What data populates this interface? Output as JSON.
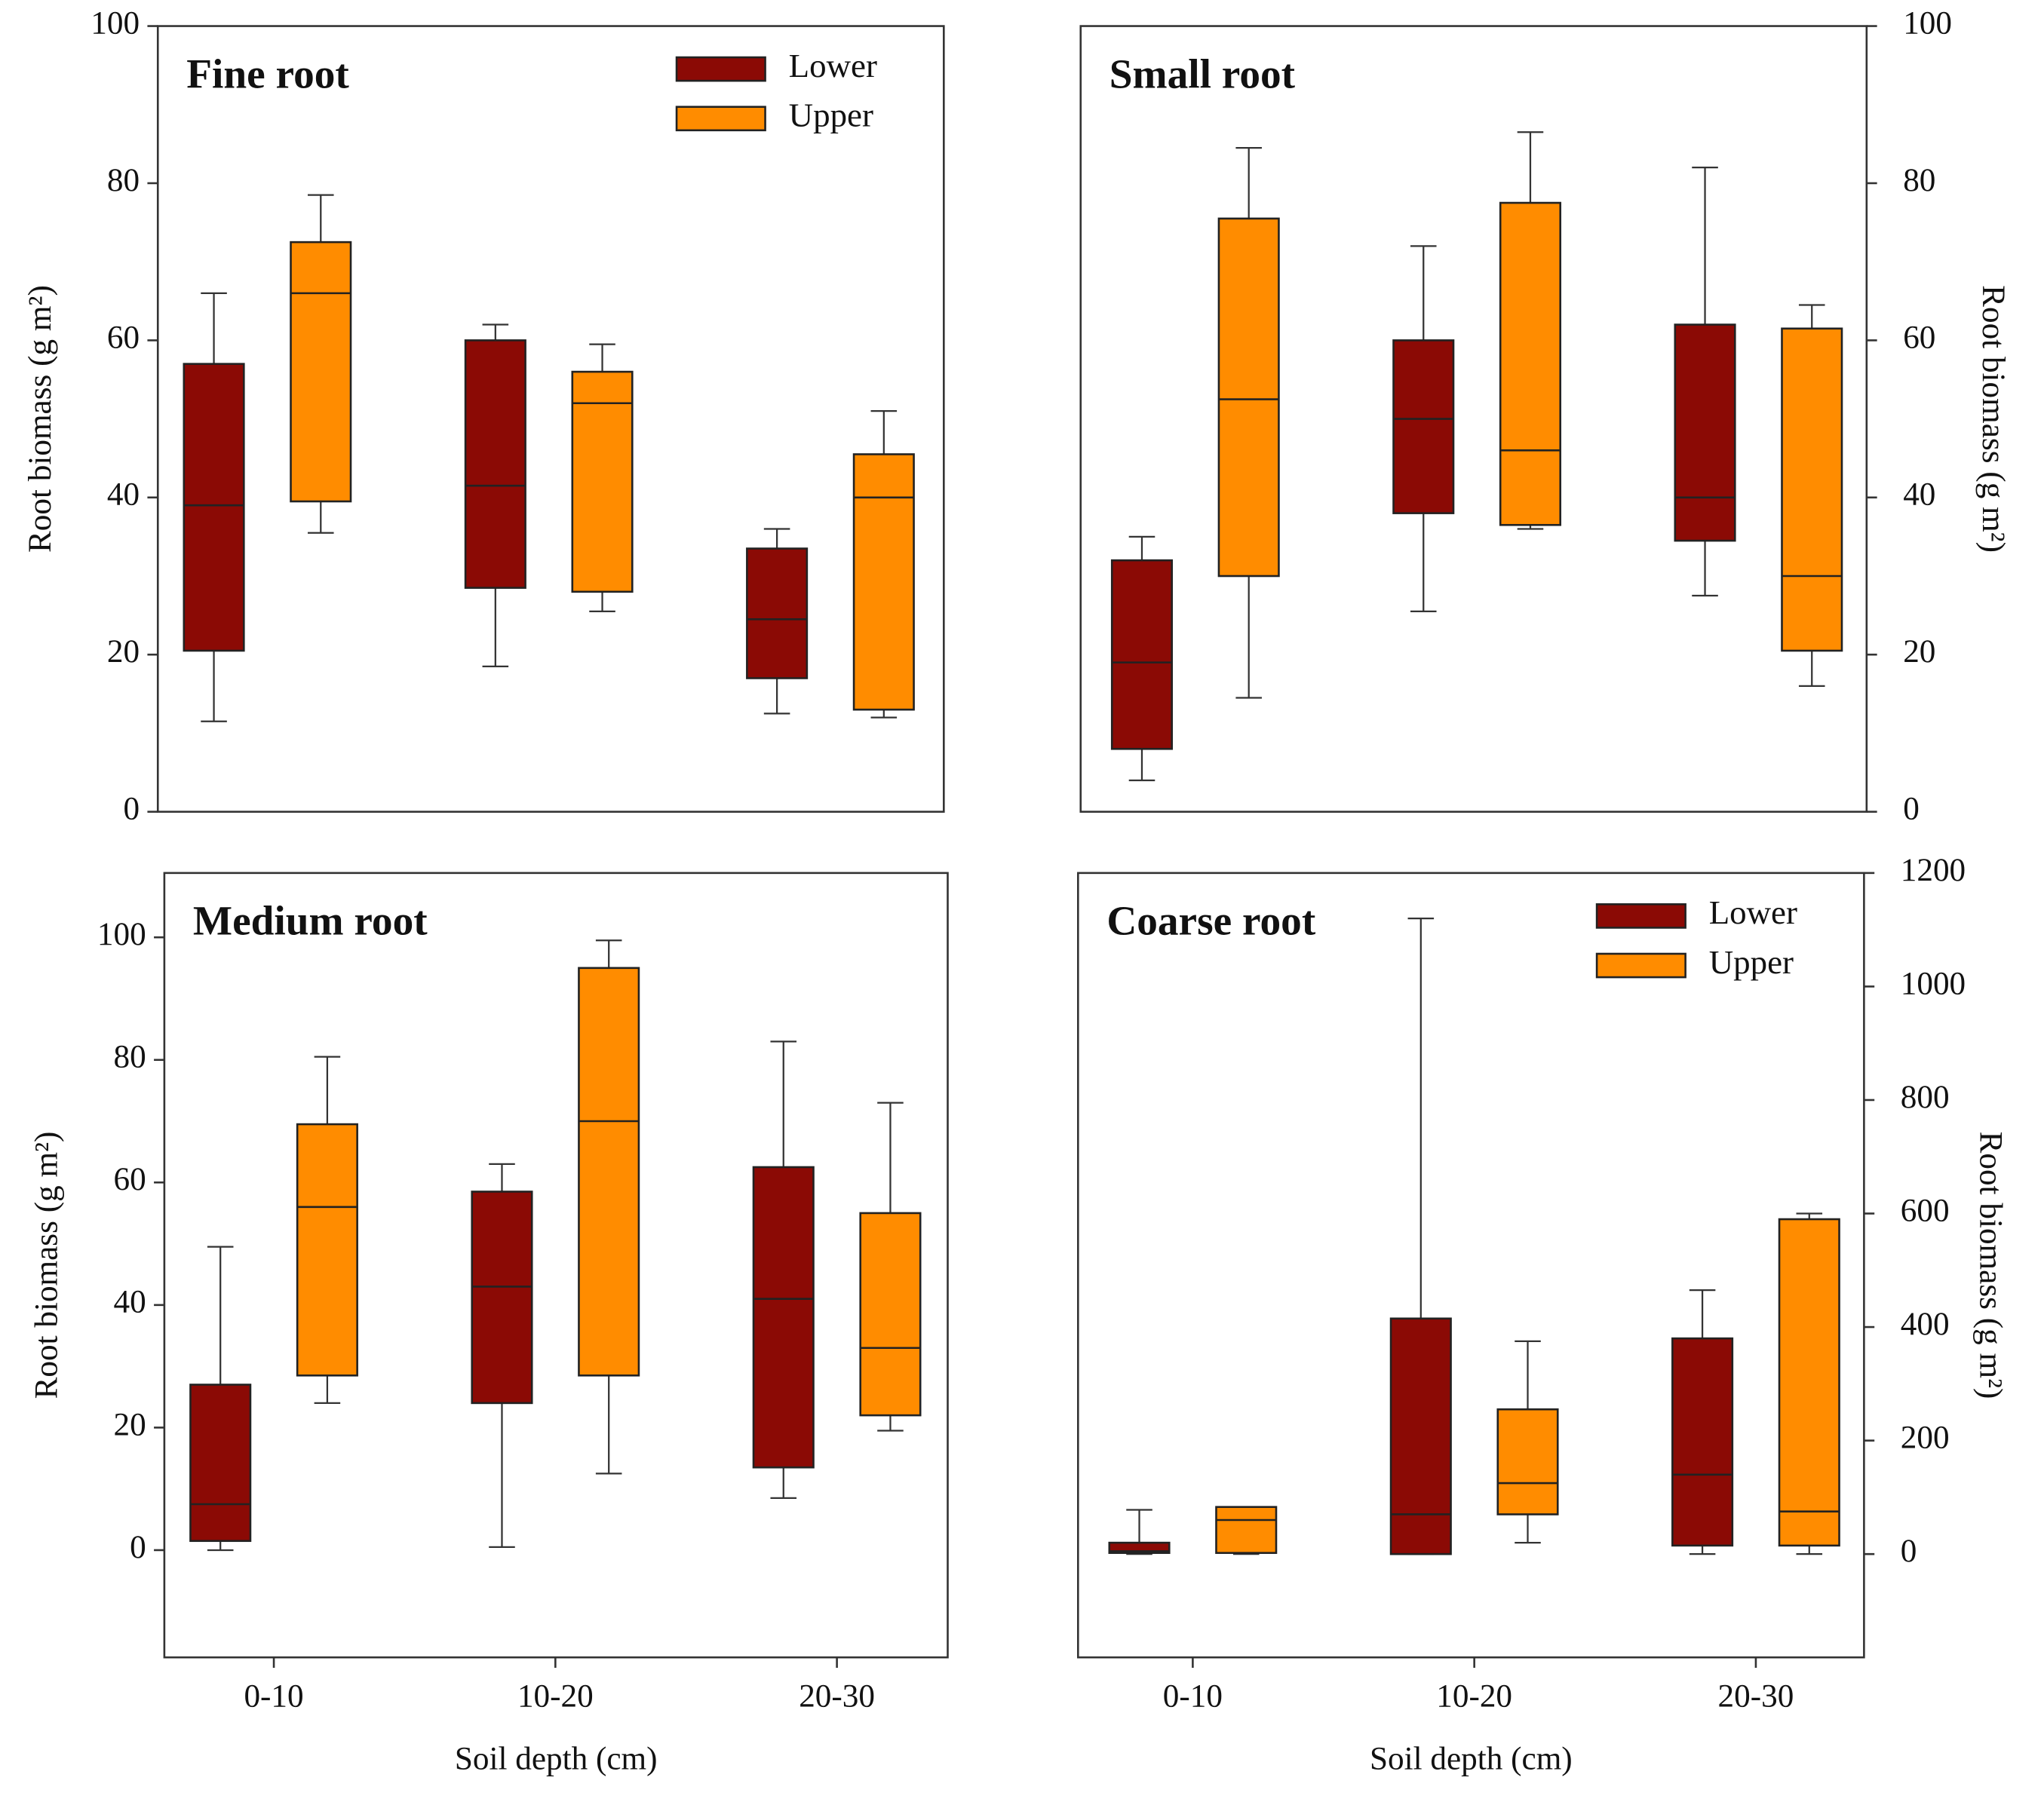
{
  "chart_data": [
    {
      "type": "box",
      "title": "Fine root",
      "y_label": "Root biomass (g m²)",
      "y_axis_side": "left",
      "categories": [
        null,
        null,
        null
      ],
      "ylim": [
        0,
        100
      ],
      "yticks": [
        0,
        20,
        40,
        60,
        80,
        100
      ],
      "legend": "top-right",
      "series": [
        {
          "name": "Lower",
          "color": "#8b0a05",
          "min": [
            11.5,
            18.5,
            12.5
          ],
          "q1": [
            20.5,
            28.5,
            17
          ],
          "median": [
            39,
            41.5,
            24.5
          ],
          "q3": [
            57,
            60,
            33.5
          ],
          "max": [
            66,
            62,
            36
          ]
        },
        {
          "name": "Upper",
          "color": "#ff8c00",
          "min": [
            35.5,
            25.5,
            12
          ],
          "q1": [
            39.5,
            28,
            13
          ],
          "median": [
            66,
            52,
            40
          ],
          "q3": [
            72.5,
            56,
            45.5
          ],
          "max": [
            78.5,
            59.5,
            51
          ]
        }
      ]
    },
    {
      "type": "box",
      "title": "Small root",
      "y_label": "Root biomass (g m²)",
      "y_axis_side": "right",
      "categories": [
        null,
        null,
        null
      ],
      "ylim": [
        0,
        100
      ],
      "yticks": [
        0,
        20,
        40,
        60,
        80,
        100
      ],
      "series": [
        {
          "color": "#8b0a05",
          "min": [
            4,
            25.5,
            27.5
          ],
          "q1": [
            8,
            38,
            34.5
          ],
          "median": [
            19,
            50,
            40
          ],
          "q3": [
            32,
            60,
            62
          ],
          "max": [
            35,
            72,
            82
          ]
        },
        {
          "color": "#ff8c00",
          "min": [
            14.5,
            36,
            16
          ],
          "q1": [
            30,
            36.5,
            20.5
          ],
          "median": [
            52.5,
            46,
            30
          ],
          "q3": [
            75.5,
            77.5,
            61.5
          ],
          "max": [
            84.5,
            86.5,
            64.5
          ]
        }
      ]
    },
    {
      "type": "box",
      "title": "Medium root",
      "y_label": "Root biomass (g m²)",
      "y_axis_side": "left",
      "x_label": "Soil depth (cm)",
      "categories": [
        "0-10",
        "10-20",
        "20-30"
      ],
      "ylim": [
        -17.5,
        110.5
      ],
      "yticks": [
        0,
        20,
        40,
        60,
        80,
        100
      ],
      "series": [
        {
          "color": "#8b0a05",
          "min": [
            0,
            0.5,
            8.5
          ],
          "q1": [
            1.5,
            24,
            13.5
          ],
          "median": [
            7.5,
            43,
            41
          ],
          "q3": [
            27,
            58.5,
            62.5
          ],
          "max": [
            49.5,
            63,
            83
          ]
        },
        {
          "color": "#ff8c00",
          "min": [
            24,
            12.5,
            19.5
          ],
          "q1": [
            28.5,
            28.5,
            22
          ],
          "median": [
            56,
            70,
            33
          ],
          "q3": [
            69.5,
            95,
            55
          ],
          "max": [
            80.5,
            99.5,
            73
          ]
        }
      ]
    },
    {
      "type": "box",
      "title": "Coarse root",
      "y_label": "Root biomass (g m²)",
      "y_axis_side": "right",
      "x_label": "Soil depth (cm)",
      "categories": [
        "0-10",
        "10-20",
        "20-30"
      ],
      "ylim": [
        -182,
        1200
      ],
      "yticks": [
        0,
        200,
        400,
        600,
        800,
        1000,
        1200
      ],
      "legend": "top-right",
      "series": [
        {
          "name": "Lower",
          "color": "#8b0a05",
          "min": [
            0,
            0,
            0
          ],
          "q1": [
            2,
            0,
            15
          ],
          "median": [
            5,
            70,
            140
          ],
          "q3": [
            20,
            415,
            380
          ],
          "max": [
            78,
            1120,
            465
          ]
        },
        {
          "name": "Upper",
          "color": "#ff8c00",
          "min": [
            0,
            20,
            0
          ],
          "q1": [
            2,
            70,
            15
          ],
          "median": [
            60,
            125,
            75
          ],
          "q3": [
            83,
            255,
            590
          ],
          "max": [
            83,
            375,
            600
          ]
        }
      ]
    }
  ]
}
